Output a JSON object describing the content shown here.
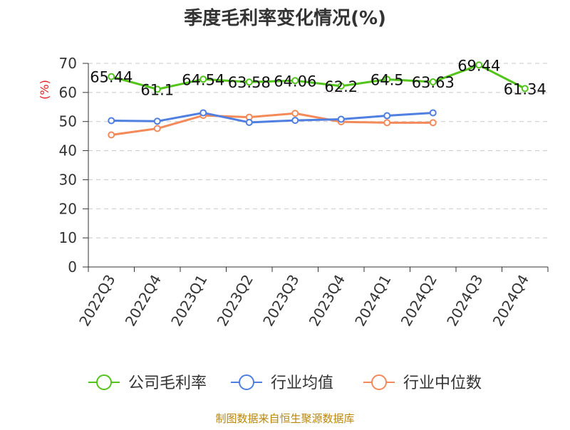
{
  "chart_data": {
    "type": "line",
    "title": "季度毛利率变化情况(%)",
    "ylabel": "(%)",
    "xlabel": "",
    "categories": [
      "2022Q3",
      "2022Q4",
      "2023Q1",
      "2023Q2",
      "2023Q3",
      "2023Q4",
      "2024Q1",
      "2024Q2",
      "2024Q3",
      "2024Q4"
    ],
    "ylim": [
      0,
      70
    ],
    "yticks": [
      0,
      10,
      20,
      30,
      40,
      50,
      60,
      70
    ],
    "grid": true,
    "legend_position": "bottom",
    "series": [
      {
        "name": "公司毛利率",
        "color": "#52c41a",
        "labels": true,
        "values": [
          65.44,
          61.1,
          64.54,
          63.58,
          64.06,
          62.2,
          64.5,
          63.63,
          69.44,
          61.34
        ]
      },
      {
        "name": "行业均值",
        "color": "#4f7fe0",
        "labels": false,
        "values": [
          50.3,
          50.1,
          53.0,
          49.7,
          50.4,
          50.8,
          52.0,
          53.0,
          null,
          null
        ]
      },
      {
        "name": "行业中位数",
        "color": "#f48a5a",
        "labels": false,
        "values": [
          45.4,
          47.6,
          52.1,
          51.5,
          52.8,
          49.9,
          49.6,
          49.6,
          null,
          null
        ]
      }
    ],
    "ylabel_color": "#e02020"
  },
  "footer": {
    "source": "制图数据来自恒生聚源数据库",
    "color": "#b8860b"
  }
}
